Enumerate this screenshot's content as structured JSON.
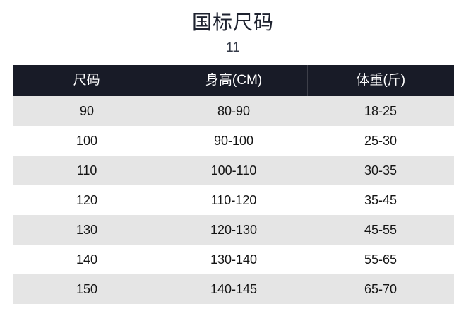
{
  "page": {
    "title": "国标尺码",
    "subtitle": "11"
  },
  "chart_data": {
    "type": "table",
    "title": "国标尺码",
    "subtitle": "11",
    "columns": [
      "尺码",
      "身高(CM)",
      "体重(斤)"
    ],
    "rows": [
      [
        "90",
        "80-90",
        "18-25"
      ],
      [
        "100",
        "90-100",
        "25-30"
      ],
      [
        "110",
        "100-110",
        "30-35"
      ],
      [
        "120",
        "110-120",
        "35-45"
      ],
      [
        "130",
        "120-130",
        "45-55"
      ],
      [
        "140",
        "130-140",
        "55-65"
      ],
      [
        "150",
        "140-145",
        "65-70"
      ]
    ],
    "layout_hints": {
      "zebra_striping": true,
      "header_style": "dark",
      "alignment": "center"
    }
  },
  "colors": {
    "header_bg": "#181b27",
    "header_text": "#ffffff",
    "header_divider": "rgba(255,255,255,0.16)",
    "row_bg": "#ffffff",
    "row_alt_bg": "#e5e5e5",
    "cell_text": "#141414",
    "title_text": "#1e222f",
    "subtitle_text": "#353b49",
    "page_bg": "#ffffff"
  }
}
